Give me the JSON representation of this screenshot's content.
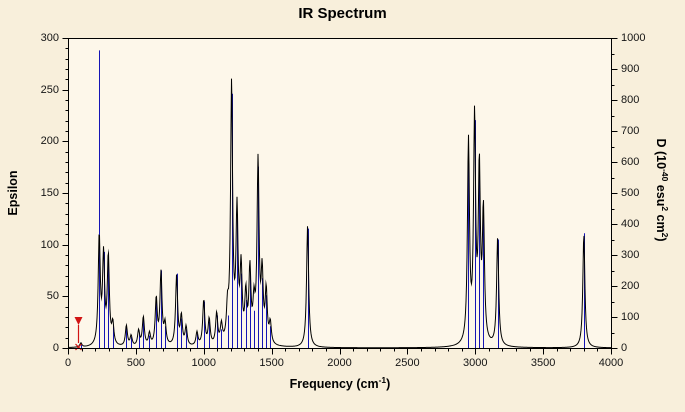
{
  "chart": {
    "title": "IR Spectrum",
    "labels": {
      "y_left": "Epsilon",
      "y_right_parts": [
        "D (10",
        "-40",
        " esu",
        "2",
        " cm",
        "2",
        ")"
      ],
      "x_parts": [
        "Frequency (cm",
        "-1",
        ")"
      ]
    }
  },
  "colors": {
    "window_bg": "#f8efdb",
    "plot_bg": "#fdf7ea",
    "envelope": "#000000",
    "sticks": "#1515b5",
    "marker": "#d11414",
    "axis": "#000000",
    "text": "#141414"
  },
  "chart_data": {
    "type": "line",
    "title": "IR Spectrum",
    "xlabel": "Frequency (cm^-1)",
    "ylabel_left": "Epsilon",
    "ylabel_right": "D (10^-40 esu^2 cm^2)",
    "xlim": [
      0,
      4000
    ],
    "ylim_left": [
      0,
      300
    ],
    "ylim_right": [
      0,
      1000
    ],
    "x_ticks": [
      0,
      500,
      1000,
      1500,
      2000,
      2500,
      3000,
      3500,
      4000
    ],
    "y_left_ticks": [
      0,
      50,
      100,
      150,
      200,
      250,
      300
    ],
    "y_right_ticks": [
      0,
      100,
      200,
      300,
      400,
      500,
      600,
      700,
      800,
      900,
      1000
    ],
    "minor_divisions": {
      "x": 5,
      "y_left": 5,
      "y_right": 2
    },
    "grid": false,
    "legend": "none",
    "lineshape": "lorentzian",
    "half_width_cm1": 9,
    "marker": {
      "frequency": 75,
      "epsilon": 30
    },
    "peaks": [
      {
        "frequency": 95,
        "epsilon": 4,
        "dipole_strength": 14
      },
      {
        "frequency": 230,
        "epsilon": 105,
        "dipole_strength": 960
      },
      {
        "frequency": 262,
        "epsilon": 85,
        "dipole_strength": 310
      },
      {
        "frequency": 297,
        "epsilon": 85,
        "dipole_strength": 305
      },
      {
        "frequency": 330,
        "epsilon": 20,
        "dipole_strength": 70
      },
      {
        "frequency": 430,
        "epsilon": 20,
        "dipole_strength": 70
      },
      {
        "frequency": 465,
        "epsilon": 10,
        "dipole_strength": 35
      },
      {
        "frequency": 520,
        "epsilon": 15,
        "dipole_strength": 50
      },
      {
        "frequency": 555,
        "epsilon": 28,
        "dipole_strength": 95
      },
      {
        "frequency": 600,
        "epsilon": 12,
        "dipole_strength": 40
      },
      {
        "frequency": 650,
        "epsilon": 45,
        "dipole_strength": 155
      },
      {
        "frequency": 685,
        "epsilon": 70,
        "dipole_strength": 250
      },
      {
        "frequency": 715,
        "epsilon": 20,
        "dipole_strength": 70
      },
      {
        "frequency": 800,
        "epsilon": 68,
        "dipole_strength": 240
      },
      {
        "frequency": 835,
        "epsilon": 28,
        "dipole_strength": 95
      },
      {
        "frequency": 870,
        "epsilon": 18,
        "dipole_strength": 60
      },
      {
        "frequency": 950,
        "epsilon": 13,
        "dipole_strength": 45
      },
      {
        "frequency": 1000,
        "epsilon": 44,
        "dipole_strength": 150
      },
      {
        "frequency": 1040,
        "epsilon": 25,
        "dipole_strength": 85
      },
      {
        "frequency": 1095,
        "epsilon": 30,
        "dipole_strength": 105
      },
      {
        "frequency": 1130,
        "epsilon": 18,
        "dipole_strength": 60
      },
      {
        "frequency": 1175,
        "epsilon": 30,
        "dipole_strength": 105
      },
      {
        "frequency": 1205,
        "epsilon": 250,
        "dipole_strength": 820
      },
      {
        "frequency": 1245,
        "epsilon": 125,
        "dipole_strength": 430
      },
      {
        "frequency": 1275,
        "epsilon": 70,
        "dipole_strength": 240
      },
      {
        "frequency": 1310,
        "epsilon": 45,
        "dipole_strength": 155
      },
      {
        "frequency": 1340,
        "epsilon": 70,
        "dipole_strength": 240
      },
      {
        "frequency": 1370,
        "epsilon": 35,
        "dipole_strength": 120
      },
      {
        "frequency": 1400,
        "epsilon": 175,
        "dipole_strength": 585
      },
      {
        "frequency": 1430,
        "epsilon": 65,
        "dipole_strength": 225
      },
      {
        "frequency": 1460,
        "epsilon": 50,
        "dipole_strength": 170
      },
      {
        "frequency": 1490,
        "epsilon": 20,
        "dipole_strength": 70
      },
      {
        "frequency": 1765,
        "epsilon": 118,
        "dipole_strength": 385
      },
      {
        "frequency": 2950,
        "epsilon": 195,
        "dipole_strength": 640
      },
      {
        "frequency": 2995,
        "epsilon": 215,
        "dipole_strength": 735
      },
      {
        "frequency": 3030,
        "epsilon": 165,
        "dipole_strength": 560
      },
      {
        "frequency": 3060,
        "epsilon": 125,
        "dipole_strength": 425
      },
      {
        "frequency": 3165,
        "epsilon": 105,
        "dipole_strength": 350
      },
      {
        "frequency": 3800,
        "epsilon": 110,
        "dipole_strength": 370
      }
    ]
  }
}
